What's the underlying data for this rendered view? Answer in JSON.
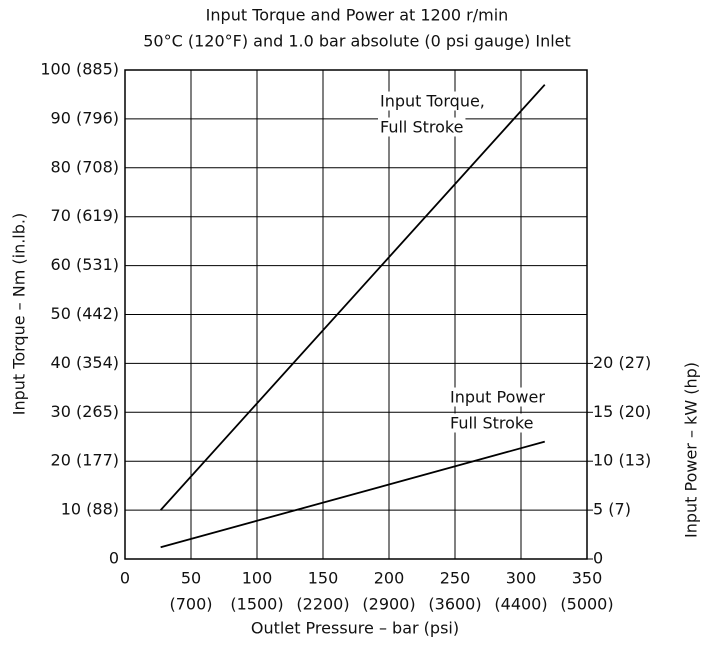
{
  "chart_data": {
    "type": "line",
    "title": "Input Torque and Power at 1200 r/min",
    "subtitle": "50°C (120°F) and 1.0 bar absolute (0 psi gauge) Inlet",
    "x_label": "Outlet Pressure – bar (psi)",
    "y_label": "Input Torque – Nm (in.lb.)",
    "y2_label": "Input Power – kW (hp)",
    "xlim": [
      0,
      350
    ],
    "xticks": [
      0,
      50,
      100,
      150,
      200,
      250,
      300,
      350
    ],
    "xtick_sublabels": [
      null,
      "(700)",
      "(1500)",
      "(2200)",
      "(2900)",
      "(3600)",
      "(4400)",
      "(5000)"
    ],
    "ylim": [
      0,
      100
    ],
    "yticks": [
      0,
      {
        "value": 10,
        "label": "10 (88)"
      },
      {
        "value": 20,
        "label": "20 (177)"
      },
      {
        "value": 30,
        "label": "30 (265)"
      },
      {
        "value": 40,
        "label": "40 (354)"
      },
      {
        "value": 50,
        "label": "50 (442)"
      },
      {
        "value": 60,
        "label": "60 (531)"
      },
      {
        "value": 70,
        "label": "70 (619)"
      },
      {
        "value": 80,
        "label": "80 (708)"
      },
      {
        "value": 90,
        "label": "90 (796)"
      },
      {
        "value": 100,
        "label": "100 (885)"
      }
    ],
    "y2lim": [
      0,
      50
    ],
    "y2ticks": [
      0,
      {
        "value": 5,
        "label": "5 (7)"
      },
      {
        "value": 10,
        "label": "10 (13)"
      },
      {
        "value": 15,
        "label": "15 (20)"
      },
      {
        "value": 20,
        "label": "20 (27)"
      }
    ],
    "grid": true,
    "series": [
      {
        "name": "Input Torque, Full Stroke",
        "label_lines": [
          "Input Torque,",
          "Full Stroke"
        ],
        "color": "#000000",
        "x": [
          27,
          318
        ],
        "values": [
          10,
          97
        ]
      },
      {
        "name": "Input Power Full Stroke",
        "label_lines": [
          "Input Power",
          "Full Stroke"
        ],
        "color": "#000000",
        "axis": "y2",
        "x": [
          27,
          318
        ],
        "values": [
          1.2,
          12
        ]
      }
    ]
  }
}
